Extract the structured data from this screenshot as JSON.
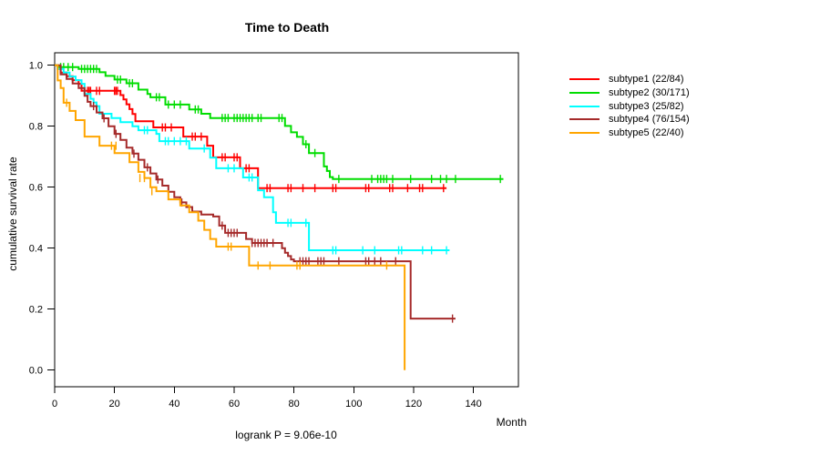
{
  "chart_data": {
    "type": "line",
    "subtype": "kaplan-meier-step-plot",
    "title": "Time to Death",
    "xlabel": "Month",
    "ylabel": "cumulative survival rate",
    "footnote": "logrank P = 9.06e-10",
    "xlim": [
      0,
      155
    ],
    "ylim": [
      0.0,
      1.0
    ],
    "x_ticks": [
      0,
      20,
      40,
      60,
      80,
      100,
      120,
      140
    ],
    "y_ticks": [
      0.0,
      0.2,
      0.4,
      0.6,
      0.8,
      1.0
    ],
    "grid": false,
    "legend_position": "right-outside",
    "frame_color": "#000000",
    "series": [
      {
        "id": "subtype1",
        "label": "subtype1 (22/84)",
        "color": "#ff0000",
        "steps": [
          [
            0,
            1.0
          ],
          [
            1,
            0.988
          ],
          [
            2,
            0.976
          ],
          [
            4,
            0.964
          ],
          [
            6,
            0.951
          ],
          [
            8,
            0.939
          ],
          [
            9,
            0.916
          ],
          [
            22,
            0.902
          ],
          [
            23,
            0.888
          ],
          [
            24,
            0.872
          ],
          [
            25,
            0.856
          ],
          [
            26,
            0.84
          ],
          [
            27,
            0.816
          ],
          [
            33,
            0.796
          ],
          [
            43,
            0.766
          ],
          [
            51,
            0.736
          ],
          [
            53,
            0.698
          ],
          [
            62,
            0.662
          ],
          [
            68,
            0.597
          ],
          [
            131,
            0.597
          ]
        ],
        "censors": [
          [
            11,
            0.916
          ],
          [
            11.5,
            0.916
          ],
          [
            12,
            0.916
          ],
          [
            14,
            0.916
          ],
          [
            15,
            0.916
          ],
          [
            20,
            0.916
          ],
          [
            20.5,
            0.916
          ],
          [
            21,
            0.916
          ],
          [
            36,
            0.796
          ],
          [
            37,
            0.796
          ],
          [
            39,
            0.796
          ],
          [
            46,
            0.766
          ],
          [
            47,
            0.766
          ],
          [
            49,
            0.766
          ],
          [
            56,
            0.698
          ],
          [
            57,
            0.698
          ],
          [
            60,
            0.698
          ],
          [
            61,
            0.698
          ],
          [
            64,
            0.662
          ],
          [
            65,
            0.662
          ],
          [
            71,
            0.597
          ],
          [
            72,
            0.597
          ],
          [
            78,
            0.597
          ],
          [
            79,
            0.597
          ],
          [
            83,
            0.597
          ],
          [
            87,
            0.597
          ],
          [
            93,
            0.597
          ],
          [
            94,
            0.597
          ],
          [
            104,
            0.597
          ],
          [
            105,
            0.597
          ],
          [
            112,
            0.597
          ],
          [
            113,
            0.597
          ],
          [
            118,
            0.597
          ],
          [
            122,
            0.597
          ],
          [
            123,
            0.597
          ],
          [
            130,
            0.597
          ]
        ]
      },
      {
        "id": "subtype2",
        "label": "subtype2 (30/171)",
        "color": "#00dd00",
        "steps": [
          [
            0,
            1.0
          ],
          [
            1,
            0.994
          ],
          [
            8,
            0.988
          ],
          [
            15,
            0.977
          ],
          [
            17,
            0.965
          ],
          [
            20,
            0.953
          ],
          [
            24,
            0.941
          ],
          [
            28,
            0.92
          ],
          [
            31,
            0.906
          ],
          [
            32,
            0.895
          ],
          [
            37,
            0.871
          ],
          [
            45,
            0.855
          ],
          [
            49,
            0.841
          ],
          [
            52,
            0.827
          ],
          [
            77,
            0.801
          ],
          [
            79,
            0.78
          ],
          [
            81,
            0.765
          ],
          [
            83,
            0.741
          ],
          [
            85,
            0.712
          ],
          [
            90,
            0.668
          ],
          [
            91,
            0.653
          ],
          [
            92,
            0.633
          ],
          [
            93,
            0.627
          ],
          [
            150,
            0.627
          ]
        ],
        "censors": [
          [
            2,
            0.994
          ],
          [
            3,
            0.994
          ],
          [
            4.5,
            0.994
          ],
          [
            6,
            0.994
          ],
          [
            9,
            0.988
          ],
          [
            10,
            0.988
          ],
          [
            11,
            0.988
          ],
          [
            12,
            0.988
          ],
          [
            13,
            0.988
          ],
          [
            14,
            0.988
          ],
          [
            21,
            0.953
          ],
          [
            22,
            0.953
          ],
          [
            25,
            0.941
          ],
          [
            26,
            0.941
          ],
          [
            34,
            0.895
          ],
          [
            35,
            0.895
          ],
          [
            38,
            0.871
          ],
          [
            40,
            0.871
          ],
          [
            42,
            0.871
          ],
          [
            47,
            0.855
          ],
          [
            48,
            0.855
          ],
          [
            56,
            0.827
          ],
          [
            57,
            0.827
          ],
          [
            58,
            0.827
          ],
          [
            60,
            0.827
          ],
          [
            61,
            0.827
          ],
          [
            62,
            0.827
          ],
          [
            63,
            0.827
          ],
          [
            64,
            0.827
          ],
          [
            65,
            0.827
          ],
          [
            66,
            0.827
          ],
          [
            68,
            0.827
          ],
          [
            69,
            0.827
          ],
          [
            75,
            0.827
          ],
          [
            76,
            0.827
          ],
          [
            84,
            0.741
          ],
          [
            87,
            0.712
          ],
          [
            95,
            0.627
          ],
          [
            106,
            0.627
          ],
          [
            108,
            0.627
          ],
          [
            109,
            0.627
          ],
          [
            110,
            0.627
          ],
          [
            111,
            0.627
          ],
          [
            113,
            0.627
          ],
          [
            119,
            0.627
          ],
          [
            126,
            0.627
          ],
          [
            129,
            0.627
          ],
          [
            131,
            0.627
          ],
          [
            134,
            0.627
          ],
          [
            149,
            0.627
          ]
        ]
      },
      {
        "id": "subtype3",
        "label": "subtype3 (25/82)",
        "color": "#00ffff",
        "steps": [
          [
            0,
            1.0
          ],
          [
            1,
            0.988
          ],
          [
            3,
            0.976
          ],
          [
            5,
            0.963
          ],
          [
            7,
            0.951
          ],
          [
            9,
            0.939
          ],
          [
            10,
            0.906
          ],
          [
            12,
            0.89
          ],
          [
            13,
            0.878
          ],
          [
            14,
            0.866
          ],
          [
            15,
            0.841
          ],
          [
            19,
            0.827
          ],
          [
            22,
            0.813
          ],
          [
            26,
            0.8
          ],
          [
            28,
            0.787
          ],
          [
            34,
            0.775
          ],
          [
            35,
            0.751
          ],
          [
            45,
            0.727
          ],
          [
            52,
            0.697
          ],
          [
            54,
            0.662
          ],
          [
            63,
            0.632
          ],
          [
            68,
            0.59
          ],
          [
            70,
            0.567
          ],
          [
            73,
            0.518
          ],
          [
            74,
            0.483
          ],
          [
            85,
            0.393
          ],
          [
            132,
            0.393
          ]
        ],
        "censors": [
          [
            30,
            0.787
          ],
          [
            31,
            0.787
          ],
          [
            37,
            0.751
          ],
          [
            38,
            0.751
          ],
          [
            40,
            0.751
          ],
          [
            42,
            0.751
          ],
          [
            44,
            0.751
          ],
          [
            50,
            0.727
          ],
          [
            58,
            0.662
          ],
          [
            60,
            0.662
          ],
          [
            65,
            0.632
          ],
          [
            66,
            0.632
          ],
          [
            78,
            0.483
          ],
          [
            79,
            0.483
          ],
          [
            84,
            0.483
          ],
          [
            93,
            0.393
          ],
          [
            94,
            0.393
          ],
          [
            103,
            0.393
          ],
          [
            107,
            0.393
          ],
          [
            115,
            0.393
          ],
          [
            116,
            0.393
          ],
          [
            123,
            0.393
          ],
          [
            126,
            0.393
          ],
          [
            131,
            0.393
          ]
        ]
      },
      {
        "id": "subtype4",
        "label": "subtype4 (76/154)",
        "color": "#a52a2a",
        "steps": [
          [
            0,
            1.0
          ],
          [
            2,
            0.97
          ],
          [
            4,
            0.955
          ],
          [
            6,
            0.94
          ],
          [
            8,
            0.925
          ],
          [
            10,
            0.9
          ],
          [
            11,
            0.88
          ],
          [
            12,
            0.866
          ],
          [
            14,
            0.845
          ],
          [
            16,
            0.826
          ],
          [
            18,
            0.8
          ],
          [
            20,
            0.775
          ],
          [
            22,
            0.755
          ],
          [
            24,
            0.73
          ],
          [
            26,
            0.71
          ],
          [
            28,
            0.69
          ],
          [
            30,
            0.665
          ],
          [
            32,
            0.645
          ],
          [
            34,
            0.625
          ],
          [
            36,
            0.605
          ],
          [
            38,
            0.585
          ],
          [
            40,
            0.567
          ],
          [
            42,
            0.55
          ],
          [
            44,
            0.535
          ],
          [
            46,
            0.52
          ],
          [
            49,
            0.51
          ],
          [
            53,
            0.504
          ],
          [
            55,
            0.474
          ],
          [
            57,
            0.45
          ],
          [
            64,
            0.43
          ],
          [
            66,
            0.417
          ],
          [
            76,
            0.4
          ],
          [
            77,
            0.385
          ],
          [
            78,
            0.374
          ],
          [
            79,
            0.363
          ],
          [
            80,
            0.357
          ],
          [
            119,
            0.169
          ],
          [
            134,
            0.169
          ]
        ],
        "censors": [
          [
            13,
            0.866
          ],
          [
            16.5,
            0.826
          ],
          [
            20.5,
            0.775
          ],
          [
            26.5,
            0.71
          ],
          [
            31,
            0.665
          ],
          [
            34.5,
            0.625
          ],
          [
            42.5,
            0.55
          ],
          [
            56,
            0.474
          ],
          [
            58,
            0.45
          ],
          [
            59,
            0.45
          ],
          [
            60,
            0.45
          ],
          [
            61,
            0.45
          ],
          [
            66,
            0.417
          ],
          [
            67,
            0.417
          ],
          [
            68,
            0.417
          ],
          [
            69,
            0.417
          ],
          [
            70,
            0.417
          ],
          [
            71,
            0.417
          ],
          [
            73,
            0.417
          ],
          [
            82,
            0.357
          ],
          [
            83,
            0.357
          ],
          [
            84,
            0.357
          ],
          [
            85,
            0.357
          ],
          [
            88,
            0.357
          ],
          [
            89,
            0.357
          ],
          [
            90,
            0.357
          ],
          [
            95,
            0.357
          ],
          [
            104,
            0.357
          ],
          [
            105,
            0.357
          ],
          [
            107,
            0.357
          ],
          [
            109,
            0.357
          ],
          [
            114,
            0.357
          ],
          [
            133,
            0.169
          ]
        ]
      },
      {
        "id": "subtype5",
        "label": "subtype5 (22/40)",
        "color": "#ffa500",
        "steps": [
          [
            0,
            1.0
          ],
          [
            1,
            0.95
          ],
          [
            2,
            0.925
          ],
          [
            3,
            0.877
          ],
          [
            5,
            0.85
          ],
          [
            7,
            0.82
          ],
          [
            10,
            0.766
          ],
          [
            15,
            0.736
          ],
          [
            20,
            0.712
          ],
          [
            25,
            0.682
          ],
          [
            28,
            0.65
          ],
          [
            30,
            0.63
          ],
          [
            32,
            0.6
          ],
          [
            34,
            0.587
          ],
          [
            38,
            0.56
          ],
          [
            42,
            0.54
          ],
          [
            45,
            0.518
          ],
          [
            48,
            0.49
          ],
          [
            50,
            0.46
          ],
          [
            52,
            0.43
          ],
          [
            54,
            0.405
          ],
          [
            65,
            0.343
          ],
          [
            117,
            0.343
          ],
          [
            117,
            0.0
          ]
        ],
        "censors": [
          [
            4,
            0.877
          ],
          [
            19,
            0.736
          ],
          [
            20.5,
            0.736
          ],
          [
            28.5,
            0.63
          ],
          [
            30,
            0.63
          ],
          [
            32.5,
            0.587
          ],
          [
            58,
            0.405
          ],
          [
            59,
            0.405
          ],
          [
            68,
            0.343
          ],
          [
            72,
            0.343
          ],
          [
            81,
            0.343
          ],
          [
            82,
            0.343
          ],
          [
            111,
            0.343
          ]
        ]
      }
    ]
  }
}
